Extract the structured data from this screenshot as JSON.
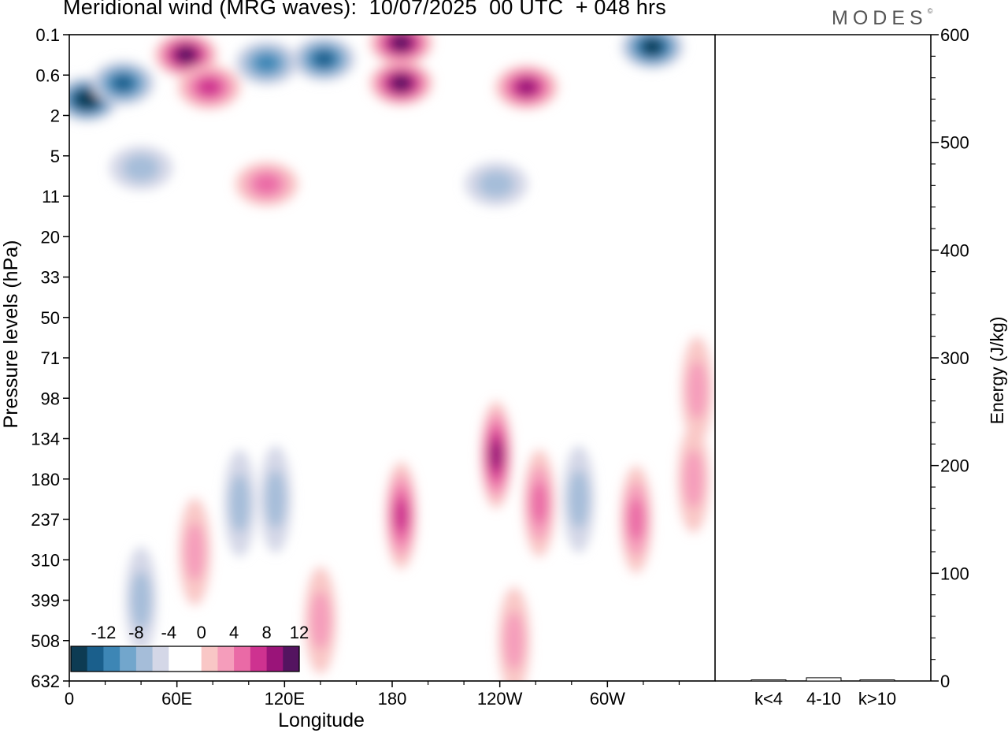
{
  "header": {
    "title": "Meridional wind (MRG waves):  10/07/2025  00 UTC  + 048 hrs",
    "brand": "MODES",
    "brand_mark": "©"
  },
  "chart_data": [
    {
      "type": "heatmap",
      "title": "Meridional wind (MRG waves):  10/07/2025  00 UTC  + 048 hrs",
      "xlabel": "Longitude",
      "ylabel": "Pressure levels (hPa)",
      "x_ticks": [
        "0",
        "60E",
        "120E",
        "180",
        "120W",
        "60W"
      ],
      "x_tick_positions_deg": [
        0,
        60,
        120,
        180,
        240,
        300
      ],
      "xlim_deg": [
        0,
        360
      ],
      "y_ticks": [
        "0.1",
        "0.6",
        "2",
        "5",
        "11",
        "20",
        "33",
        "50",
        "71",
        "98",
        "134",
        "180",
        "237",
        "310",
        "399",
        "508",
        "632"
      ],
      "y_scale": "ordinal pressure levels",
      "colorbar": {
        "placement": "bottom-left inside plot",
        "labels": [
          "-12",
          "-8",
          "-4",
          "0",
          "4",
          "8",
          "12"
        ],
        "colors": [
          "#0d3b53",
          "#1a5f8c",
          "#3d86b5",
          "#72a6cc",
          "#a5bdd9",
          "#d4d7e7",
          "#ffffff",
          "#ffffff",
          "#f9c7c6",
          "#f59dbb",
          "#ea6aa6",
          "#ce3290",
          "#9a1479",
          "#541460"
        ]
      },
      "features": [
        {
          "lon": 10,
          "level": 1.6,
          "value": -14
        },
        {
          "lon": 30,
          "level": 1.2,
          "value": -11
        },
        {
          "lon": 65,
          "level": 0.5,
          "value": 13
        },
        {
          "lon": 78,
          "level": 1.3,
          "value": 9
        },
        {
          "lon": 110,
          "level": 0.7,
          "value": -8
        },
        {
          "lon": 142,
          "level": 0.6,
          "value": -10
        },
        {
          "lon": 185,
          "level": 0.2,
          "value": 13
        },
        {
          "lon": 185,
          "level": 1.2,
          "value": 12
        },
        {
          "lon": 255,
          "level": 1.3,
          "value": 10
        },
        {
          "lon": 325,
          "level": 0.3,
          "value": -13
        },
        {
          "lon": 110,
          "level": 3.7,
          "value": 6
        },
        {
          "lon": 40,
          "level": 3.3,
          "value": -4
        },
        {
          "lon": 238,
          "level": 3.7,
          "value": -5
        },
        {
          "lon": 95,
          "level": 11.6,
          "value": -4
        },
        {
          "lon": 115,
          "level": 11.5,
          "value": -5
        },
        {
          "lon": 185,
          "level": 11.9,
          "value": 9
        },
        {
          "lon": 238,
          "level": 10.4,
          "value": 11
        },
        {
          "lon": 262,
          "level": 11.6,
          "value": 7
        },
        {
          "lon": 284,
          "level": 11.5,
          "value": -4
        },
        {
          "lon": 316,
          "level": 12.0,
          "value": 7
        },
        {
          "lon": 348,
          "level": 11.0,
          "value": 5
        },
        {
          "lon": 140,
          "level": 14.5,
          "value": 5
        },
        {
          "lon": 70,
          "level": 12.8,
          "value": 5
        },
        {
          "lon": 248,
          "level": 15.0,
          "value": 5
        },
        {
          "lon": 40,
          "level": 14.0,
          "value": -4
        },
        {
          "lon": 350,
          "level": 8.8,
          "value": 5
        }
      ]
    },
    {
      "type": "bar",
      "categories": [
        "k<4",
        "4-10",
        "k>10"
      ],
      "values": [
        1,
        3,
        1
      ],
      "ylabel": "Energy (J/kg)",
      "y_ticks": [
        "0",
        "100",
        "200",
        "300",
        "400",
        "500",
        "600"
      ],
      "ylim": [
        0,
        600
      ]
    }
  ]
}
